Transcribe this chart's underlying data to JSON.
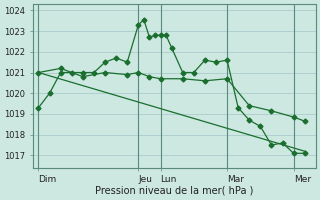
{
  "bg_color": "#cce8e0",
  "grid_color": "#aacccc",
  "line_color": "#1a6e2e",
  "ylabel_ticks": [
    1017,
    1018,
    1019,
    1020,
    1021,
    1022,
    1023,
    1024
  ],
  "ylim": [
    1016.4,
    1024.3
  ],
  "xlabel": "Pression niveau de la mer( hPa )",
  "day_labels": [
    "Dim",
    "Jeu",
    "Lun",
    "Mar",
    "Mer"
  ],
  "day_positions": [
    0,
    18,
    22,
    34,
    46
  ],
  "xlim": [
    -1,
    50
  ],
  "series1_x": [
    0,
    2,
    4,
    6,
    8,
    10,
    12,
    14,
    16,
    18,
    19,
    20,
    21,
    22,
    23,
    24,
    26,
    28,
    30,
    32,
    34,
    36,
    38,
    40,
    42,
    44,
    46,
    48
  ],
  "series1_y": [
    1019.3,
    1020.0,
    1021.0,
    1021.0,
    1021.0,
    1021.0,
    1021.5,
    1021.7,
    1021.5,
    1023.3,
    1023.55,
    1022.7,
    1022.8,
    1022.8,
    1022.8,
    1022.2,
    1021.0,
    1021.0,
    1021.6,
    1021.5,
    1021.6,
    1019.3,
    1018.7,
    1018.4,
    1017.5,
    1017.6,
    1017.1,
    1017.1
  ],
  "series2_x": [
    0,
    4,
    8,
    12,
    16,
    18,
    20,
    22,
    26,
    30,
    34,
    38,
    42,
    46,
    48
  ],
  "series2_y": [
    1021.0,
    1021.2,
    1020.8,
    1021.0,
    1020.9,
    1021.0,
    1020.8,
    1020.7,
    1020.7,
    1020.6,
    1020.7,
    1019.4,
    1019.15,
    1018.85,
    1018.65
  ],
  "series3_x": [
    0,
    48
  ],
  "series3_y": [
    1021.0,
    1017.2
  ]
}
